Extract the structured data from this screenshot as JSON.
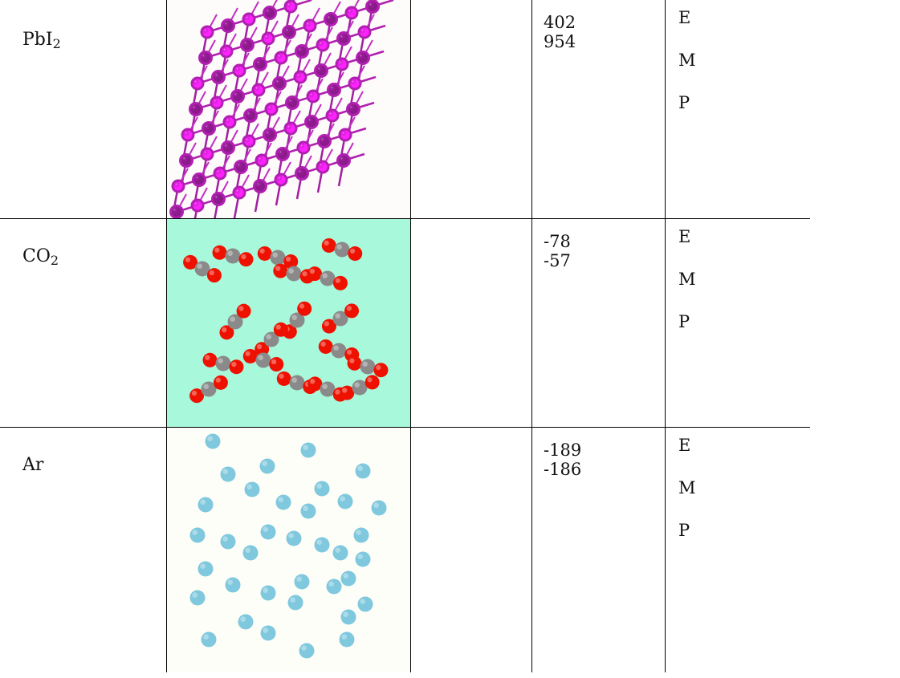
{
  "rows": [
    {
      "formula_base": "PbI",
      "formula_sub": "2",
      "image": "lead-iodide-lattice-image",
      "values": [
        "402",
        "954"
      ],
      "letters": [
        "E",
        "M",
        "P"
      ]
    },
    {
      "formula_base": "CO",
      "formula_sub": "2",
      "image": "carbon-dioxide-molecules-image",
      "values": [
        "-78",
        "-57"
      ],
      "letters": [
        "E",
        "M",
        "P"
      ]
    },
    {
      "formula_base": "Ar",
      "formula_sub": "",
      "image": "argon-atoms-image",
      "values": [
        "-189",
        "-186"
      ],
      "letters": [
        "E",
        "M",
        "P"
      ]
    }
  ],
  "colors": {
    "iodine": "#8b1a8b",
    "lead": "#ff22ff",
    "oxygen": "#ee1100",
    "carbon": "#8a8a8a",
    "argon": "#7fc8de",
    "panel_co2": "#a8f8dc"
  }
}
